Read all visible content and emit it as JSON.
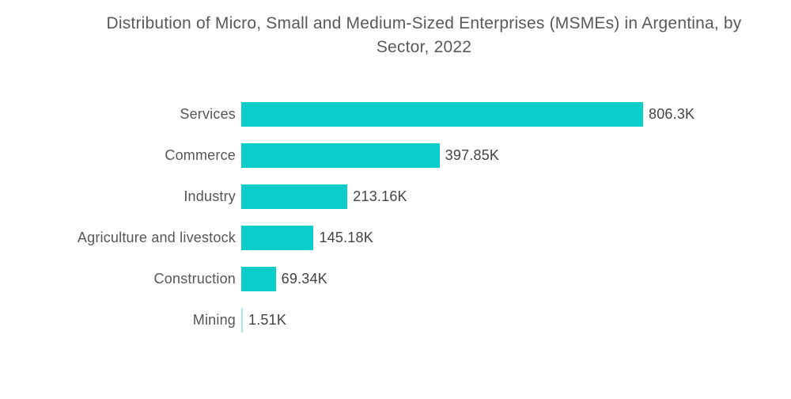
{
  "chart_data": {
    "type": "bar",
    "orientation": "horizontal",
    "title": "Distribution of Micro, Small and Medium-Sized Enterprises (MSMEs) in Argentina, by Sector, 2022",
    "title_lines": [
      "Distribution of Micro, Small and Medium-Sized Enterprises (MSMEs) in Argentina, by",
      "Sector, 2022"
    ],
    "categories": [
      "Services",
      "Commerce",
      "Industry",
      "Agriculture and livestock",
      "Construction",
      "Mining"
    ],
    "values_k": [
      806.3,
      397.85,
      213.16,
      145.18,
      69.34,
      1.51
    ],
    "value_labels": [
      "806.3K",
      "397.85K",
      "213.16K",
      "145.18K",
      "69.34K",
      "1.51K"
    ],
    "unit": "K (thousand enterprises)",
    "xlabel": "",
    "ylabel": "",
    "xlim_k": [
      0,
      806.3
    ],
    "grid": false,
    "legend": false,
    "bar_color": "#0bcecb",
    "thin_bar_color": "#a5e7ec",
    "title_color": "#58595d",
    "category_label_color": "#54565a",
    "value_label_color": "#404347",
    "background_color": "#ffffff"
  }
}
